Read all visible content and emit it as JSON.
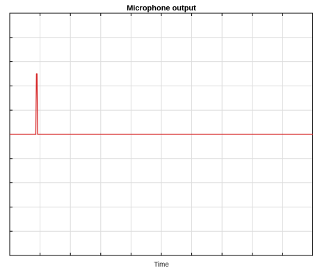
{
  "chart_data": {
    "type": "line",
    "title": "Microphone output",
    "xlabel": "Time",
    "ylabel": "",
    "xlim": [
      0,
      10
    ],
    "ylim": [
      -5,
      5
    ],
    "xticks": [
      1,
      2,
      3,
      4,
      5,
      6,
      7,
      8,
      9
    ],
    "yticks": [
      -4,
      -3,
      -2,
      -1,
      0,
      1,
      2,
      3,
      4
    ],
    "grid": true,
    "series": [
      {
        "color": "#d62728",
        "x": [
          0,
          0.86,
          0.88,
          0.9,
          0.92,
          0.94,
          10
        ],
        "y": [
          0,
          0,
          2.5,
          2.5,
          0,
          0,
          0
        ]
      }
    ]
  }
}
